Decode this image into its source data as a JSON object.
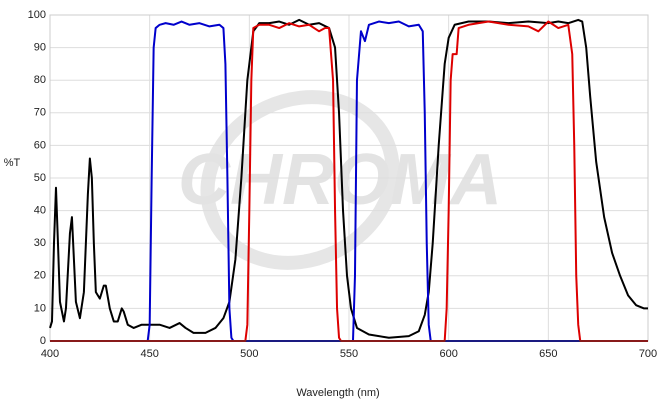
{
  "chart_data": {
    "type": "line",
    "watermark": "CHROMA",
    "xlabel": "Wavelength (nm)",
    "ylabel": "%T",
    "xlim": [
      400,
      700
    ],
    "xticks": [
      400,
      450,
      500,
      550,
      600,
      650,
      700
    ],
    "ylim": [
      0,
      100
    ],
    "yticks": [
      0,
      10,
      20,
      30,
      40,
      50,
      60,
      70,
      80,
      90,
      100
    ],
    "grid": true,
    "series": [
      {
        "color": "#000000",
        "x": [
          400,
          401,
          402,
          403,
          404,
          405,
          407,
          408,
          410,
          411,
          412,
          413,
          415,
          417,
          419,
          420,
          421,
          422,
          423,
          425,
          427,
          428,
          430,
          432,
          434,
          436,
          437,
          439,
          442,
          446,
          450,
          455,
          460,
          465,
          468,
          472,
          478,
          483,
          487,
          490,
          493,
          496,
          499,
          502,
          505,
          510,
          515,
          520,
          525,
          530,
          535,
          540,
          543,
          545,
          547,
          549,
          551,
          554,
          560,
          570,
          580,
          585,
          588,
          590,
          592,
          595,
          598,
          600,
          603,
          610,
          620,
          630,
          640,
          650,
          655,
          660,
          665,
          667,
          669,
          671,
          674,
          678,
          682,
          686,
          690,
          694,
          698,
          700
        ],
        "values": [
          4,
          6,
          30,
          47,
          30,
          12,
          6,
          10,
          33,
          38,
          25,
          12,
          7,
          15,
          45,
          56,
          50,
          30,
          15,
          13,
          17,
          17,
          10,
          6,
          6,
          10,
          9,
          5,
          4,
          5,
          5,
          5,
          4,
          5.5,
          4,
          2.5,
          2.5,
          4,
          7,
          12,
          25,
          50,
          80,
          95,
          97.5,
          97.5,
          98,
          97,
          98.5,
          97,
          97.5,
          96,
          90,
          70,
          40,
          20,
          10,
          4,
          2,
          1,
          1.5,
          3,
          8,
          15,
          30,
          60,
          85,
          93,
          97,
          98,
          98,
          97.5,
          98,
          97.5,
          98,
          97.5,
          98.5,
          98,
          90,
          75,
          55,
          38,
          27,
          20,
          14,
          11,
          10,
          10
        ]
      },
      {
        "color": "#0000cc",
        "x": [
          400,
          449,
          450,
          451,
          452,
          453,
          455,
          458,
          462,
          466,
          470,
          475,
          480,
          485,
          487,
          488,
          489,
          490,
          491,
          492,
          552,
          553,
          554,
          556,
          558,
          560,
          565,
          570,
          575,
          580,
          585,
          587,
          588,
          589,
          590,
          591,
          700
        ],
        "values": [
          0,
          0,
          5,
          50,
          90,
          96,
          97,
          97.5,
          97,
          98,
          97,
          97.5,
          96.5,
          97,
          96,
          85,
          50,
          10,
          1,
          0,
          0,
          20,
          80,
          95,
          92,
          97,
          98,
          97.5,
          98,
          96.5,
          97,
          95,
          70,
          30,
          5,
          0,
          0
        ]
      },
      {
        "color": "#dd0000",
        "x": [
          400,
          498,
          499,
          500,
          501,
          502,
          505,
          510,
          515,
          520,
          525,
          530,
          535,
          538,
          540,
          542,
          543,
          544,
          545,
          546,
          598,
          599,
          600,
          601,
          602,
          604,
          605,
          610,
          620,
          630,
          640,
          645,
          650,
          655,
          660,
          662,
          663,
          664,
          665,
          666,
          700
        ],
        "values": [
          0,
          0,
          5,
          40,
          80,
          96,
          97,
          97,
          96,
          97.5,
          96.5,
          97,
          95,
          96,
          96,
          80,
          40,
          10,
          1,
          0,
          0,
          10,
          40,
          80,
          88,
          88,
          96,
          97,
          98,
          97,
          96.5,
          95,
          98,
          96,
          97,
          88,
          60,
          20,
          5,
          0,
          0
        ]
      }
    ]
  }
}
